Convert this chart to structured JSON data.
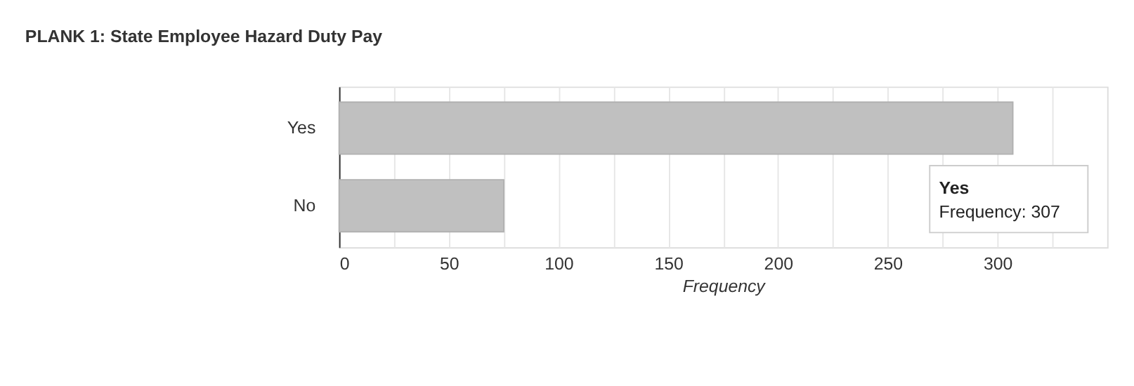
{
  "chart_data": {
    "type": "bar",
    "orientation": "horizontal",
    "title": "PLANK 1: State Employee Hazard Duty Pay",
    "xlabel": "Frequency",
    "categories": [
      "Yes",
      "No"
    ],
    "values": [
      307,
      75
    ],
    "color": "#c0c0c0",
    "xlim": [
      0,
      350
    ],
    "xticks": [
      0,
      {
        "value": 25,
        "label": null
      },
      50,
      {
        "value": 75,
        "label": null
      },
      100,
      {
        "value": 125,
        "label": null
      },
      150,
      {
        "value": 175,
        "label": null
      },
      200,
      {
        "value": 225,
        "label": null
      },
      250,
      {
        "value": 275,
        "label": null
      },
      300,
      {
        "value": 325,
        "label": null
      }
    ],
    "grid": "x",
    "annotations": [
      {
        "text": "Yes\nFrequency: 307",
        "x": 307,
        "y": "Yes"
      }
    ]
  }
}
